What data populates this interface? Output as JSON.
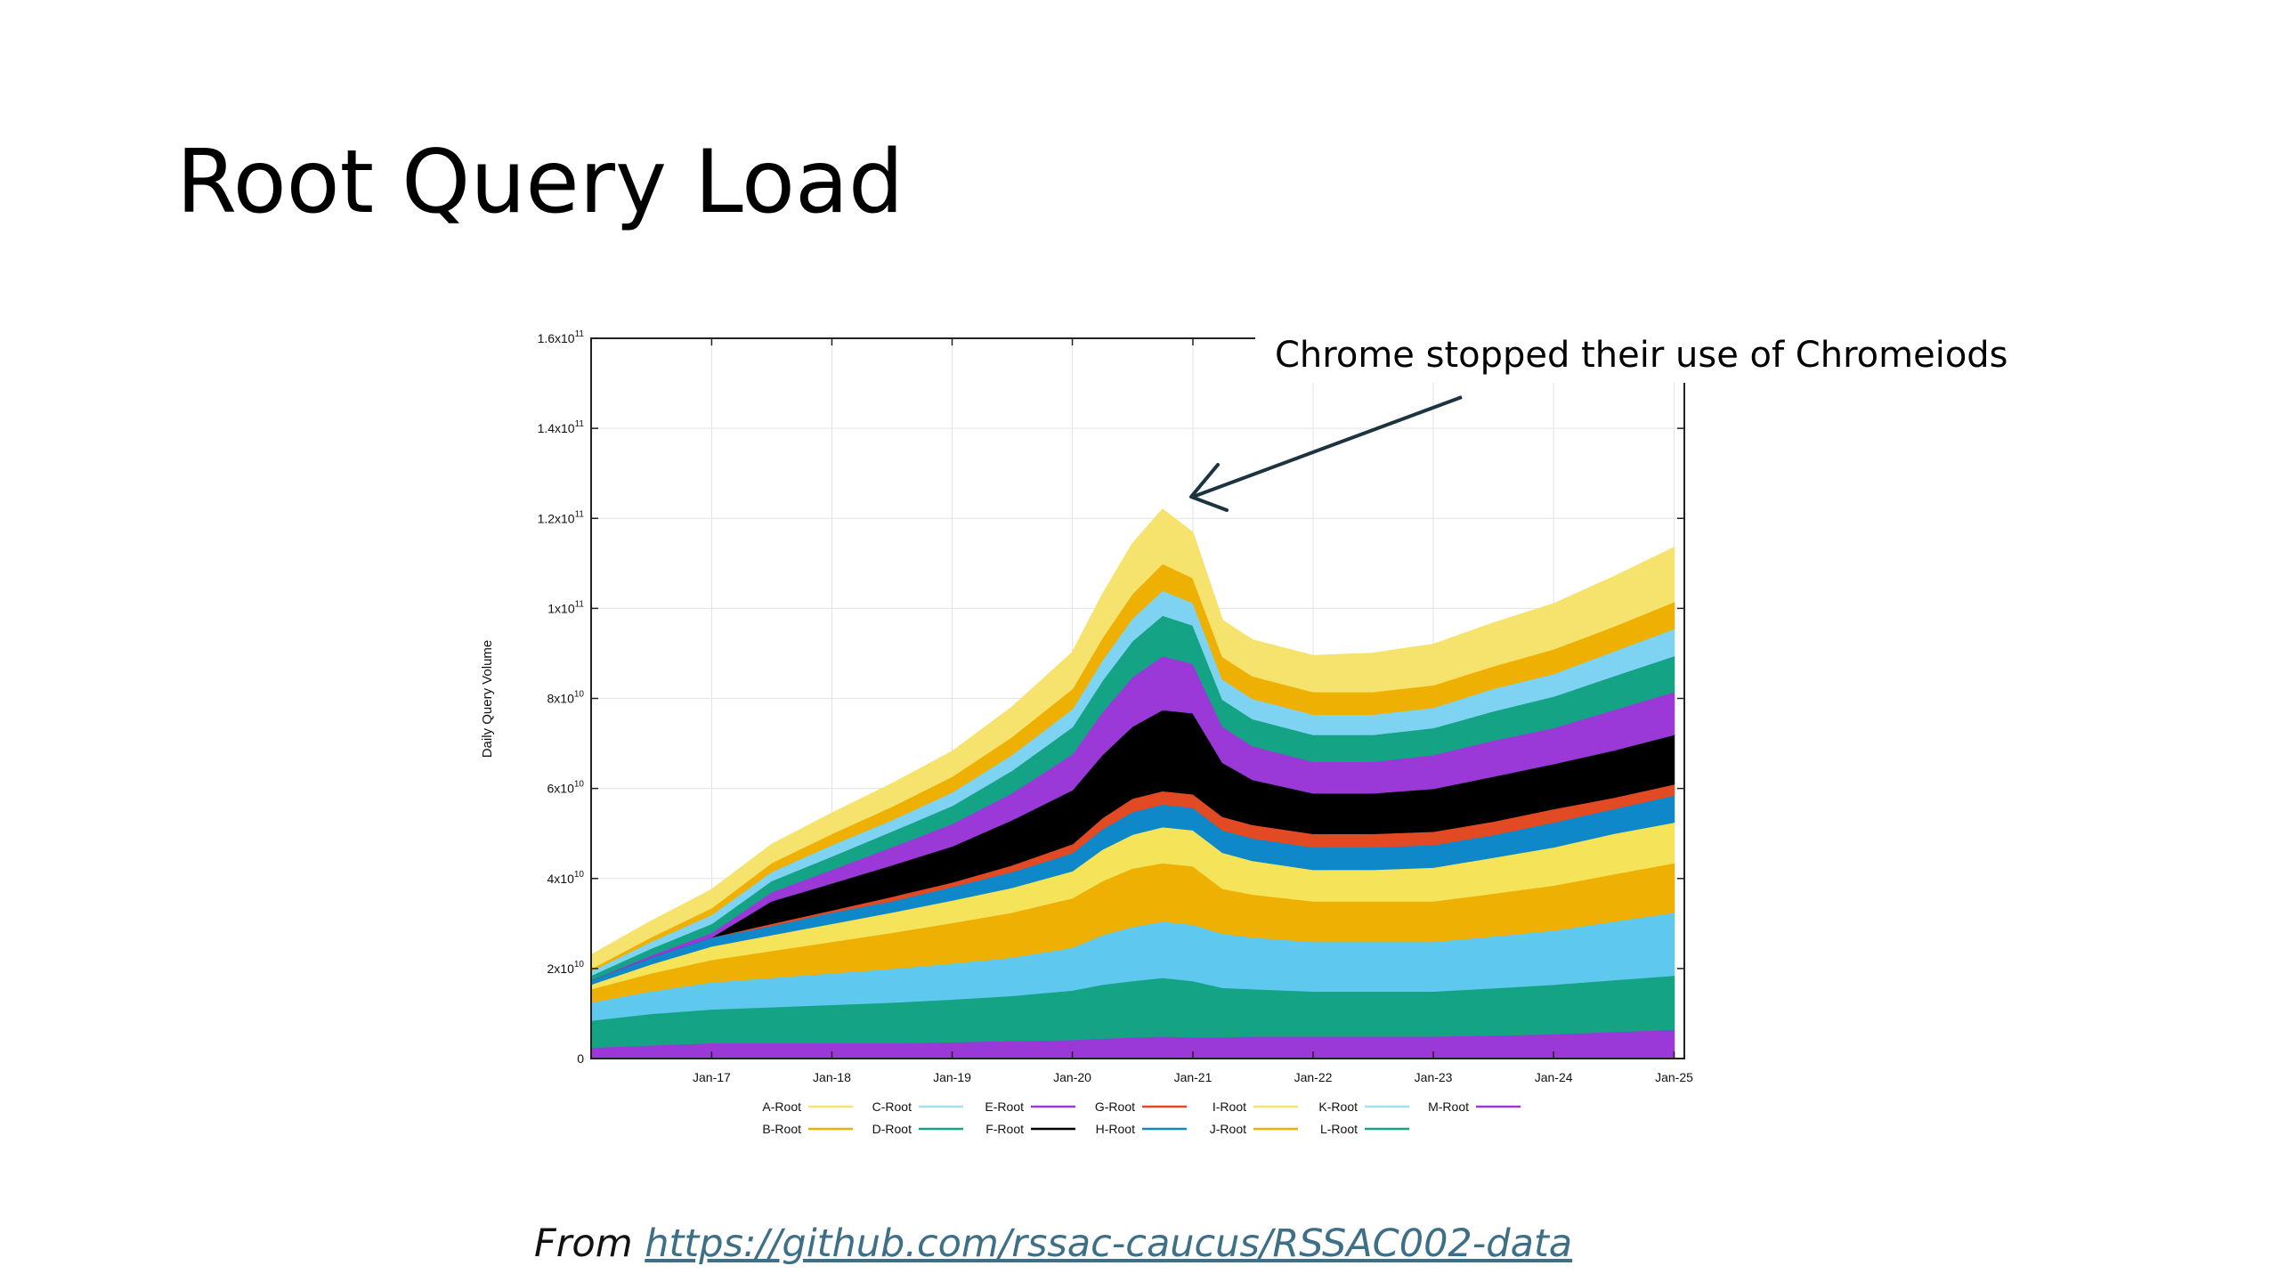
{
  "slide": {
    "title": "Root Query Load",
    "source_prefix": "From",
    "source_url": "https://github.com/rssac-caucus/RSSAC002-data"
  },
  "colors": {
    "background": "#ffffff",
    "title_text": "#000000",
    "link": "#3d6f86",
    "annotation_arrow": "#1c3340"
  },
  "chart_data": {
    "type": "area",
    "stacked": true,
    "title": "",
    "xlabel": "",
    "ylabel": "Daily Query Volume",
    "grid": true,
    "legend_position": "bottom",
    "xlim": [
      "2016-01-01",
      "2025-02-01"
    ],
    "ylim": [
      0,
      160000000000
    ],
    "x_ticks": [
      {
        "date": "2017-01-01",
        "label": "Jan-17"
      },
      {
        "date": "2018-01-01",
        "label": "Jan-18"
      },
      {
        "date": "2019-01-01",
        "label": "Jan-19"
      },
      {
        "date": "2020-01-01",
        "label": "Jan-20"
      },
      {
        "date": "2021-01-01",
        "label": "Jan-21"
      },
      {
        "date": "2022-01-01",
        "label": "Jan-22"
      },
      {
        "date": "2023-01-01",
        "label": "Jan-23"
      },
      {
        "date": "2024-01-01",
        "label": "Jan-24"
      },
      {
        "date": "2025-01-01",
        "label": "Jan-25"
      }
    ],
    "y_ticks": [
      {
        "value": 0,
        "base": "0",
        "exp": ""
      },
      {
        "value": 20000000000,
        "base": "2x10",
        "exp": "10"
      },
      {
        "value": 40000000000,
        "base": "4x10",
        "exp": "10"
      },
      {
        "value": 60000000000,
        "base": "6x10",
        "exp": "10"
      },
      {
        "value": 80000000000,
        "base": "8x10",
        "exp": "10"
      },
      {
        "value": 100000000000,
        "base": "1x10",
        "exp": "11"
      },
      {
        "value": 120000000000,
        "base": "1.2x10",
        "exp": "11"
      },
      {
        "value": 140000000000,
        "base": "1.4x10",
        "exp": "11"
      },
      {
        "value": 160000000000,
        "base": "1.6x10",
        "exp": "11"
      }
    ],
    "x": [
      "2016-01-01",
      "2016-07-01",
      "2017-01-01",
      "2017-07-01",
      "2018-01-01",
      "2018-07-01",
      "2019-01-01",
      "2019-07-01",
      "2020-01-01",
      "2020-04-01",
      "2020-07-01",
      "2020-10-01",
      "2021-01-01",
      "2021-04-01",
      "2021-07-01",
      "2022-01-01",
      "2022-07-01",
      "2023-01-01",
      "2023-07-01",
      "2024-01-01",
      "2024-07-01",
      "2025-01-01"
    ],
    "series_order_bottom_to_top": [
      "M-Root",
      "L-Root",
      "K-Root",
      "J-Root",
      "I-Root",
      "H-Root",
      "G-Root",
      "F-Root",
      "E-Root",
      "D-Root",
      "C-Root",
      "B-Root",
      "A-Root"
    ],
    "series": [
      {
        "name": "M-Root",
        "color": "#9b38d8",
        "values": [
          2500000000.0,
          3000000000.0,
          3500000000.0,
          3500000000.0,
          3500000000.0,
          3500000000.0,
          3700000000.0,
          4000000000.0,
          4200000000.0,
          4500000000.0,
          4800000000.0,
          5000000000.0,
          4800000000.0,
          4800000000.0,
          5000000000.0,
          5000000000.0,
          5000000000.0,
          5000000000.0,
          5200000000.0,
          5500000000.0,
          6000000000.0,
          6500000000.0
        ]
      },
      {
        "name": "L-Root",
        "color": "#14a385",
        "values": [
          6000000000.0,
          7000000000.0,
          7500000000.0,
          8000000000.0,
          8500000000.0,
          9000000000.0,
          9500000000.0,
          10000000000.0,
          11000000000.0,
          12000000000.0,
          12500000000.0,
          13000000000.0,
          12500000000.0,
          11000000000.0,
          10500000000.0,
          10000000000.0,
          10000000000.0,
          10000000000.0,
          10500000000.0,
          11000000000.0,
          11500000000.0,
          12000000000.0
        ]
      },
      {
        "name": "K-Root",
        "color": "#5ec8ef",
        "values": [
          4000000000.0,
          5000000000.0,
          6000000000.0,
          6500000000.0,
          7000000000.0,
          7500000000.0,
          8000000000.0,
          8500000000.0,
          9500000000.0,
          11000000000.0,
          12000000000.0,
          12500000000.0,
          12500000000.0,
          12000000000.0,
          11500000000.0,
          11000000000.0,
          11000000000.0,
          11000000000.0,
          11500000000.0,
          12000000000.0,
          13000000000.0,
          14000000000.0
        ]
      },
      {
        "name": "J-Root",
        "color": "#eeb003",
        "values": [
          3000000000.0,
          4000000000.0,
          5000000000.0,
          6000000000.0,
          7000000000.0,
          8000000000.0,
          9000000000.0,
          10000000000.0,
          11000000000.0,
          12000000000.0,
          13000000000.0,
          13000000000.0,
          13000000000.0,
          10000000000.0,
          9500000000.0,
          9000000000.0,
          9000000000.0,
          9000000000.0,
          9500000000.0,
          10000000000.0,
          10500000000.0,
          11000000000.0
        ]
      },
      {
        "name": "I-Root",
        "color": "#f5e45a",
        "values": [
          1000000000.0,
          2000000000.0,
          3000000000.0,
          3500000000.0,
          4000000000.0,
          4500000000.0,
          5000000000.0,
          5500000000.0,
          6000000000.0,
          7000000000.0,
          7500000000.0,
          8000000000.0,
          8000000000.0,
          8000000000.0,
          7500000000.0,
          7000000000.0,
          7000000000.0,
          7500000000.0,
          8000000000.0,
          8500000000.0,
          9000000000.0,
          9000000000.0
        ]
      },
      {
        "name": "H-Root",
        "color": "#0e88c8",
        "values": [
          1000000000.0,
          1500000000.0,
          2000000000.0,
          2000000000.0,
          2500000000.0,
          2500000000.0,
          3000000000.0,
          3500000000.0,
          4000000000.0,
          4500000000.0,
          5000000000.0,
          5000000000.0,
          5000000000.0,
          5000000000.0,
          5000000000.0,
          5000000000.0,
          5000000000.0,
          5000000000.0,
          5000000000.0,
          5500000000.0,
          5500000000.0,
          6000000000.0
        ]
      },
      {
        "name": "G-Root",
        "color": "#e14a22",
        "values": [
          0,
          0,
          0,
          500000000.0,
          500000000.0,
          1000000000.0,
          1000000000.0,
          1500000000.0,
          2000000000.0,
          2500000000.0,
          3000000000.0,
          3000000000.0,
          3000000000.0,
          3000000000.0,
          3000000000.0,
          3000000000.0,
          3000000000.0,
          3000000000.0,
          3000000000.0,
          3000000000.0,
          2500000000.0,
          2500000000.0
        ]
      },
      {
        "name": "F-Root",
        "color": "#000000",
        "values": [
          0,
          0,
          0,
          5000000000.0,
          6000000000.0,
          7000000000.0,
          8000000000.0,
          10000000000.0,
          12000000000.0,
          14000000000.0,
          16000000000.0,
          18000000000.0,
          18000000000.0,
          12000000000.0,
          10000000000.0,
          9000000000.0,
          9000000000.0,
          9500000000.0,
          10000000000.0,
          10000000000.0,
          10500000000.0,
          11000000000.0
        ]
      },
      {
        "name": "E-Root",
        "color": "#9b38d8",
        "values": [
          0,
          500000000.0,
          1000000000.0,
          2000000000.0,
          3000000000.0,
          4000000000.0,
          5000000000.0,
          6000000000.0,
          8000000000.0,
          9500000000.0,
          11000000000.0,
          12000000000.0,
          11000000000.0,
          8000000000.0,
          7500000000.0,
          7000000000.0,
          7000000000.0,
          7500000000.0,
          8000000000.0,
          8000000000.0,
          9000000000.0,
          9500000000.0
        ]
      },
      {
        "name": "D-Root",
        "color": "#14a385",
        "values": [
          1000000000.0,
          1500000000.0,
          2000000000.0,
          2500000000.0,
          3000000000.0,
          3500000000.0,
          4000000000.0,
          5000000000.0,
          6000000000.0,
          7000000000.0,
          8000000000.0,
          9000000000.0,
          8500000000.0,
          6000000000.0,
          6000000000.0,
          6000000000.0,
          6000000000.0,
          6000000000.0,
          6500000000.0,
          7000000000.0,
          7500000000.0,
          8000000000.0
        ]
      },
      {
        "name": "C-Root",
        "color": "#7fd3f2",
        "values": [
          1000000000.0,
          1500000000.0,
          2000000000.0,
          2000000000.0,
          2500000000.0,
          2500000000.0,
          3000000000.0,
          3500000000.0,
          4000000000.0,
          4500000000.0,
          5000000000.0,
          5500000000.0,
          5000000000.0,
          4500000000.0,
          4500000000.0,
          4500000000.0,
          4500000000.0,
          4500000000.0,
          5000000000.0,
          5000000000.0,
          5500000000.0,
          6000000000.0
        ]
      },
      {
        "name": "B-Root",
        "color": "#eeb003",
        "values": [
          500000000.0,
          1000000000.0,
          1500000000.0,
          2000000000.0,
          2500000000.0,
          3000000000.0,
          3500000000.0,
          4000000000.0,
          4500000000.0,
          5000000000.0,
          5500000000.0,
          6000000000.0,
          5500000000.0,
          5000000000.0,
          5000000000.0,
          5000000000.0,
          5000000000.0,
          5000000000.0,
          5000000000.0,
          5500000000.0,
          5500000000.0,
          6000000000.0
        ]
      },
      {
        "name": "A-Root",
        "color": "#f6e36e",
        "values": [
          3000000000.0,
          3500000000.0,
          4000000000.0,
          4000000000.0,
          4500000000.0,
          5000000000.0,
          5500000000.0,
          6500000000.0,
          8000000000.0,
          9500000000.0,
          11000000000.0,
          12000000000.0,
          10000000000.0,
          8000000000.0,
          8000000000.0,
          8000000000.0,
          8500000000.0,
          9000000000.0,
          9500000000.0,
          10000000000.0,
          11000000000.0,
          12000000000.0
        ]
      }
    ],
    "legend": [
      {
        "label": "A-Root",
        "color": "#f6e36e"
      },
      {
        "label": "C-Root",
        "color": "#a6dff4"
      },
      {
        "label": "E-Root",
        "color": "#9b38d8"
      },
      {
        "label": "G-Root",
        "color": "#e14a22"
      },
      {
        "label": "I-Root",
        "color": "#f6e36e"
      },
      {
        "label": "K-Root",
        "color": "#a6dff4"
      },
      {
        "label": "M-Root",
        "color": "#9b38d8"
      },
      {
        "label": "B-Root",
        "color": "#eeb003"
      },
      {
        "label": "D-Root",
        "color": "#14a385"
      },
      {
        "label": "F-Root",
        "color": "#000000"
      },
      {
        "label": "H-Root",
        "color": "#0e88c8"
      },
      {
        "label": "J-Root",
        "color": "#eeb003"
      },
      {
        "label": "L-Root",
        "color": "#14a385"
      }
    ],
    "annotation": {
      "text": "Chrome stopped their use of Chromeiods",
      "points_to": {
        "date": "2021-01-01",
        "value": 125000000000
      }
    }
  }
}
